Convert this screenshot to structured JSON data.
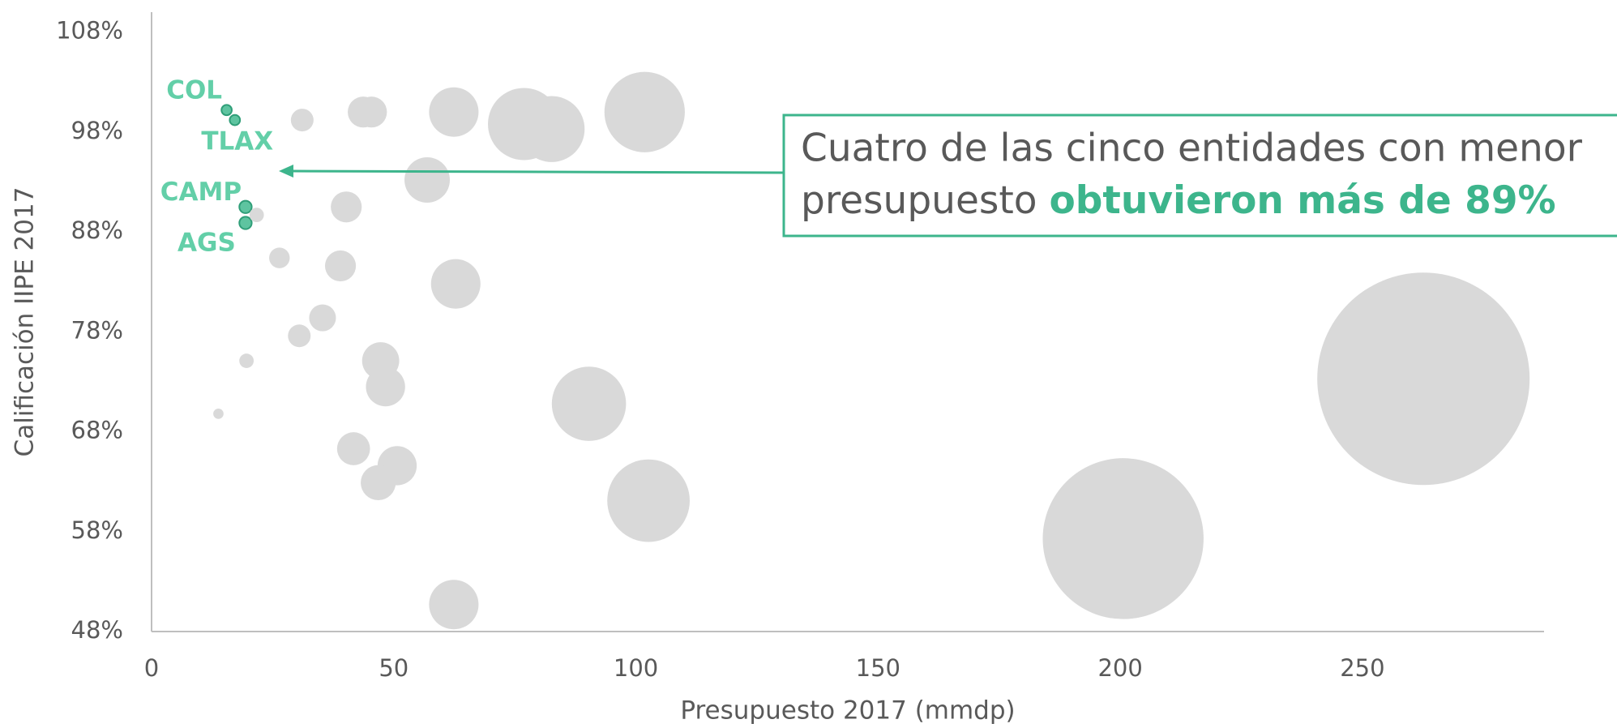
{
  "chart_data": {
    "type": "bubble",
    "xlabel": "Presupuesto 2017 (mmdp)",
    "ylabel": "Calificación IIPE 2017",
    "x": [
      15.5,
      17.2,
      19.4,
      19.4,
      21.7,
      31.1,
      43.7,
      45.4,
      62.4,
      76.9,
      82.6,
      101.8,
      56.9,
      40.2,
      26.4,
      39.0,
      62.8,
      35.3,
      30.5,
      19.6,
      47.3,
      48.3,
      13.8,
      90.3,
      41.7,
      50.7,
      46.8,
      102.6,
      62.4,
      262.6,
      200.6
    ],
    "values": [
      100.2,
      99.2,
      90.5,
      88.9,
      89.7,
      99.2,
      100.0,
      100.0,
      100.0,
      98.8,
      98.3,
      100.0,
      93.2,
      90.5,
      85.4,
      84.6,
      82.8,
      79.4,
      77.6,
      75.1,
      75.1,
      72.5,
      69.8,
      70.8,
      66.3,
      64.6,
      62.9,
      61.1,
      50.7,
      73.3,
      57.3
    ],
    "sizes": [
      5,
      5,
      6,
      6,
      7,
      11,
      15,
      15,
      24,
      35,
      32,
      39,
      22,
      15,
      10,
      15,
      24,
      13,
      11,
      7,
      18,
      19,
      5,
      36,
      16,
      19,
      17,
      40,
      24,
      103,
      78
    ],
    "labels": [
      "COL",
      "TLAX",
      "CAMP",
      "AGS",
      null,
      null,
      null,
      null,
      null,
      null,
      null,
      null,
      null,
      null,
      null,
      null,
      null,
      null,
      null,
      null,
      null,
      null,
      null,
      null,
      null,
      null,
      null,
      null,
      null,
      null,
      null
    ],
    "color": "#d9d9d9",
    "highlight_color": "#5ec4a0",
    "xlim": [
      0,
      287.5
    ],
    "xticks": [
      0,
      50,
      100,
      150,
      200,
      250
    ],
    "ylim": [
      48,
      110
    ],
    "yticks": [
      {
        "value": 48,
        "label": "48%"
      },
      {
        "value": 58,
        "label": "58%"
      },
      {
        "value": 68,
        "label": "68%"
      },
      {
        "value": 78,
        "label": "78%"
      },
      {
        "value": 88,
        "label": "88%"
      },
      {
        "value": 98,
        "label": "98%"
      },
      {
        "value": 108,
        "label": "108%"
      }
    ],
    "annotation": [
      "Cuatro de las cinco entidades con menor",
      "presupuesto ",
      "obtuvieron más de 89%"
    ]
  }
}
